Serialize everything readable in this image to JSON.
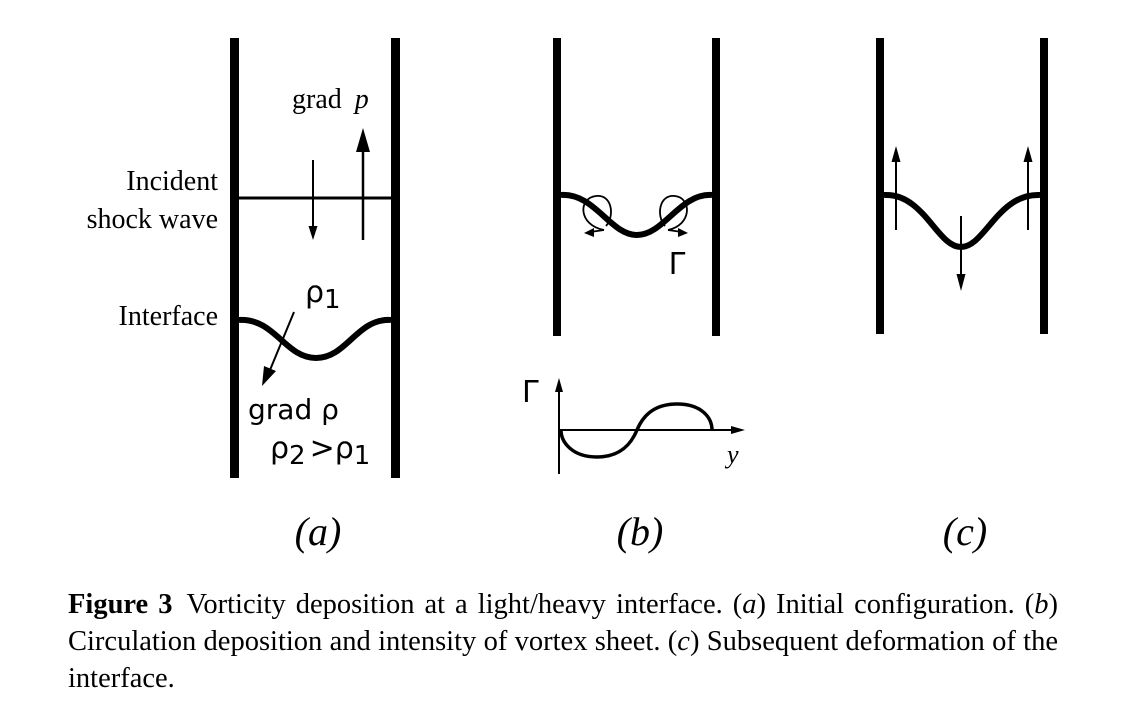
{
  "panel_a": {
    "grad_p_label": "grad",
    "grad_p_var": "p",
    "shock_label_line1": "Incident",
    "shock_label_line2": "shock wave",
    "interface_label": "Interface",
    "rho1_label": "ρ",
    "rho1_sub": "1",
    "grad_rho_label": "grad ρ",
    "rho2_label": "ρ",
    "rho2_sub": "2",
    "rho2_gt": ">ρ",
    "rho2_gt_sub": "1",
    "panel_label": "(a)"
  },
  "panel_b": {
    "gamma_label": "Γ",
    "plot_gamma_label": "Γ",
    "plot_y_label": "y",
    "panel_label": "(b)"
  },
  "panel_c": {
    "panel_label": "(c)"
  },
  "caption": {
    "figure_number": "Figure 3",
    "t1": "Vorticity deposition at a light/heavy interface. (",
    "a": "a",
    "t2": ") Initial configuration. (",
    "b": "b",
    "t3": ") Circulation deposition and intensity of vortex sheet. (",
    "c": "c",
    "t4": ") Subsequent deformation of the interface."
  }
}
